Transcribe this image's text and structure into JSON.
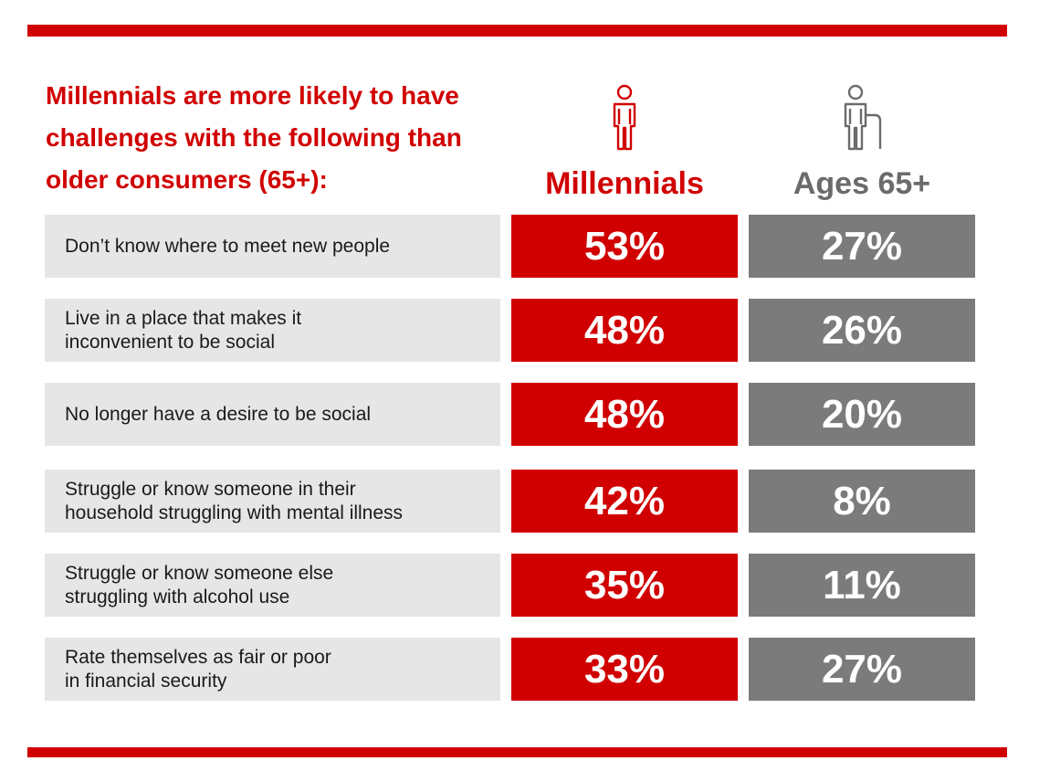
{
  "headline": "Millennials are more likely to have challenges with the following than older consumers (65+):",
  "colors": {
    "accent": "#d10000",
    "gray": "#7b7b7b",
    "label_bg": "#e6e6e6"
  },
  "icons": {
    "millennials": "standing-person-icon",
    "seniors": "person-with-cane-icon"
  },
  "chart_data": {
    "type": "table",
    "title": "Millennials are more likely to have challenges with the following than older consumers (65+):",
    "columns": [
      "Millennials",
      "Ages 65+"
    ],
    "categories": [
      "Don’t know where to meet new people",
      "Live in a place that makes it\ninconvenient to be social",
      "No longer have a desire to be social",
      "Struggle or know someone in their\nhousehold struggling with mental illness",
      "Struggle or know someone else\nstruggling with alcohol use",
      "Rate themselves as fair or poor\nin financial security"
    ],
    "series": [
      {
        "name": "Millennials",
        "values": [
          53,
          48,
          48,
          42,
          35,
          33
        ],
        "labels": [
          "53%",
          "48%",
          "48%",
          "42%",
          "35%",
          "33%"
        ]
      },
      {
        "name": "Ages 65+",
        "values": [
          27,
          26,
          20,
          8,
          11,
          27
        ],
        "labels": [
          "27%",
          "26%",
          "20%",
          "8%",
          "11%",
          "27%"
        ]
      }
    ]
  }
}
